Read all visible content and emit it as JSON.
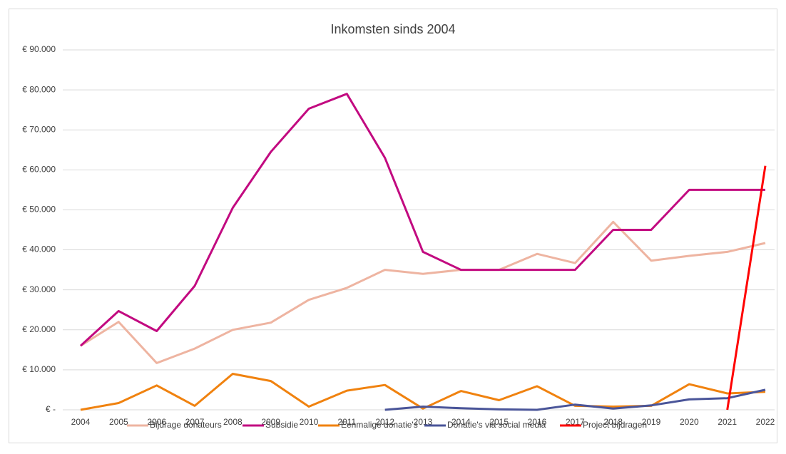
{
  "chart_data": {
    "type": "line",
    "title": "Inkomsten sinds 2004",
    "categories": [
      "2004",
      "2005",
      "2006",
      "2007",
      "2008",
      "2009",
      "2010",
      "2011",
      "2012",
      "2013",
      "2014",
      "2015",
      "2016",
      "2017",
      "2018",
      "2019",
      "2020",
      "2021",
      "2022"
    ],
    "series": [
      {
        "name": "Bijdrage donateurs",
        "color": "#eeb4a1",
        "values": [
          16000,
          22000,
          11700,
          15300,
          20000,
          21800,
          27500,
          30500,
          35000,
          34000,
          35000,
          35000,
          39000,
          36700,
          47000,
          37300,
          38500,
          39500,
          41700
        ]
      },
      {
        "name": "Subsidie",
        "color": "#c20a80",
        "values": [
          16000,
          24700,
          19700,
          31000,
          50500,
          64500,
          75300,
          79000,
          63000,
          39500,
          35000,
          35000,
          35000,
          35000,
          45000,
          45000,
          55000,
          55000,
          55000
        ]
      },
      {
        "name": "Eenmalige donatie's",
        "color": "#f0820f",
        "values": [
          0,
          1700,
          6100,
          1000,
          9000,
          7200,
          800,
          4800,
          6200,
          300,
          4700,
          2400,
          5900,
          1000,
          800,
          1000,
          6400,
          4100,
          4500
        ]
      },
      {
        "name": "Donatie's via social media",
        "color": "#4a5599",
        "values": [
          null,
          null,
          null,
          null,
          null,
          null,
          null,
          null,
          0,
          800,
          400,
          100,
          0,
          1300,
          300,
          1100,
          2600,
          2900,
          5000
        ]
      },
      {
        "name": "Project bijdragen",
        "color": "#ff0000",
        "values": [
          null,
          null,
          null,
          null,
          null,
          null,
          null,
          null,
          null,
          null,
          null,
          null,
          null,
          null,
          null,
          null,
          null,
          0,
          61000
        ]
      }
    ],
    "ylim": [
      0,
      90000
    ],
    "yticks": [
      {
        "value": 0,
        "label": "€ -"
      },
      {
        "value": 10000,
        "label": "€ 10.000"
      },
      {
        "value": 20000,
        "label": "€ 20.000"
      },
      {
        "value": 30000,
        "label": "€ 30.000"
      },
      {
        "value": 40000,
        "label": "€ 40.000"
      },
      {
        "value": 50000,
        "label": "€ 50.000"
      },
      {
        "value": 60000,
        "label": "€ 60.000"
      },
      {
        "value": 70000,
        "label": "€ 70.000"
      },
      {
        "value": 80000,
        "label": "€ 80.000"
      },
      {
        "value": 90000,
        "label": "€ 90.000"
      }
    ],
    "grid": true,
    "legend": "bottom"
  }
}
